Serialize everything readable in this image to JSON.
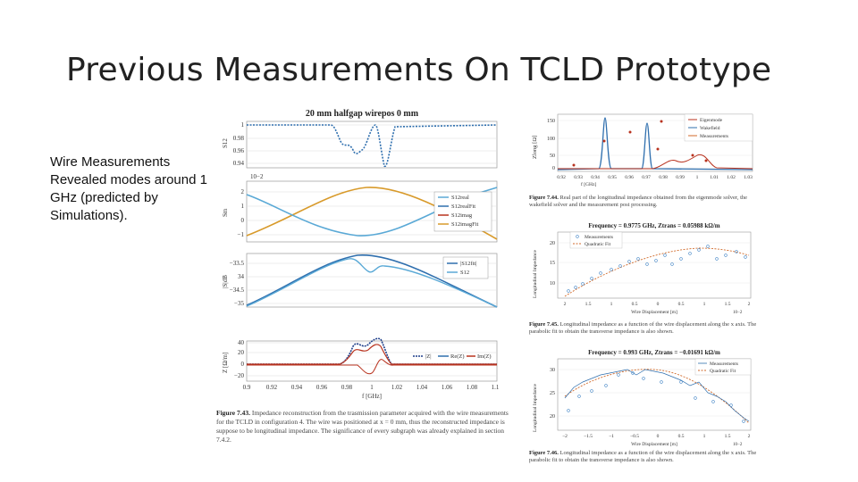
{
  "slide": {
    "title": "Previous Measurements On TCLD Prototype",
    "bullet": "Wire Measurements Revealed modes around 1 GHz (predicted by Simulations)."
  },
  "left_figure": {
    "title": "20 mm halfgap wirepos 0 mm",
    "panel1": {
      "ylabel": "S12",
      "yticks": [
        "1",
        "0.98",
        "0.96",
        "0.94"
      ]
    },
    "panel2": {
      "ylabel": "Sm",
      "exponent": "10−2",
      "yticks": [
        "2",
        "1",
        "0",
        "−1"
      ],
      "legend": [
        "S12real",
        "S12realFit",
        "S12imag",
        "S12imagFit"
      ]
    },
    "panel3": {
      "ylabel": "|S|dB",
      "yticks": [
        "−33.5",
        "34",
        "−34.5",
        "−35"
      ],
      "legend": [
        "|S12fit|",
        "S12"
      ]
    },
    "panel4": {
      "ylabel": "Z [Ω/m]",
      "yticks": [
        "40",
        "20",
        "0",
        "−20"
      ],
      "legend": [
        "|Z|",
        "Re(Z)",
        "Im(Z)"
      ]
    },
    "xticks": [
      "0.9",
      "0.92",
      "0.94",
      "0.96",
      "0.98",
      "1",
      "1.02",
      "1.04",
      "1.06",
      "1.08",
      "1.1"
    ],
    "xlabel": "f [GHz]",
    "caption_label": "Figure 7.43.",
    "caption_text": "Impedance reconstruction from the trasmission parameter acquired with the wire measurements for the TCLD in configuration 4. The wire was positioned at x = 0 mm, thus the reconstructed impedance is suppose to be longitudinal impedance. The significance of every subgraph was already explained in section 7.4.2."
  },
  "right_top": {
    "ylabel": "Zlong [Ω]",
    "yticks": [
      "150",
      "100",
      "50",
      "0"
    ],
    "xticks": [
      "0.92",
      "0.93",
      "0.94",
      "0.95",
      "0.96",
      "0.97",
      "0.98",
      "0.99",
      "1",
      "1.01",
      "1.02",
      "1.03"
    ],
    "xlabel": "f [GHz]",
    "legend": [
      "Eigenmode",
      "Wakefield",
      "Measurements"
    ],
    "caption_label": "Figure 7.44.",
    "caption_text": "Real part of the longitudinal impedance obtained from the eigenmode solver, the wakefield solver and the measurement post processing."
  },
  "right_mid": {
    "title": "Frequency = 0.9775 GHz, Ztrans = 0.05988 kΩ/m",
    "ylabel": "Longitudinal Impedance",
    "yticks": [
      "20",
      "15",
      "10"
    ],
    "xticks": [
      "2",
      "1.5",
      "1",
      "0.5",
      "0",
      "0.5",
      "1",
      "1.5",
      "2"
    ],
    "xlabel": "Wire Displacement [m]",
    "exponent": "10−2",
    "legend": [
      "Measurements",
      "Quadratic Fit"
    ],
    "caption_label": "Figure 7.45.",
    "caption_text": "Longitudinal impedance as a function of the wire displacement along the x axis. The parabolic fit to obtain the transverse impedance is also shown."
  },
  "right_bot": {
    "title": "Frequency = 0.993 GHz, Ztrans = −0.01691 kΩ/m",
    "ylabel": "Longitudinal Impedance",
    "yticks": [
      "30",
      "25",
      "20"
    ],
    "xticks": [
      "−2",
      "−1.5",
      "−1",
      "−0.5",
      "0",
      "0.5",
      "1",
      "1.5",
      "2"
    ],
    "xlabel": "Wire Displacement [m]",
    "exponent": "10−2",
    "legend": [
      "Measurements",
      "Quadratic Fit"
    ],
    "caption_label": "Figure 7.46.",
    "caption_text": "Longitudinal impedance as a function of the wire displacement along the x axis. The parabolic fit to obtain the transverse impedance is also shown."
  },
  "colors": {
    "blue": "#2f6fae",
    "lightblue": "#5aa9d6",
    "orange": "#d89a2a",
    "red": "#b8321e",
    "darkblue": "#1f3f8a"
  }
}
